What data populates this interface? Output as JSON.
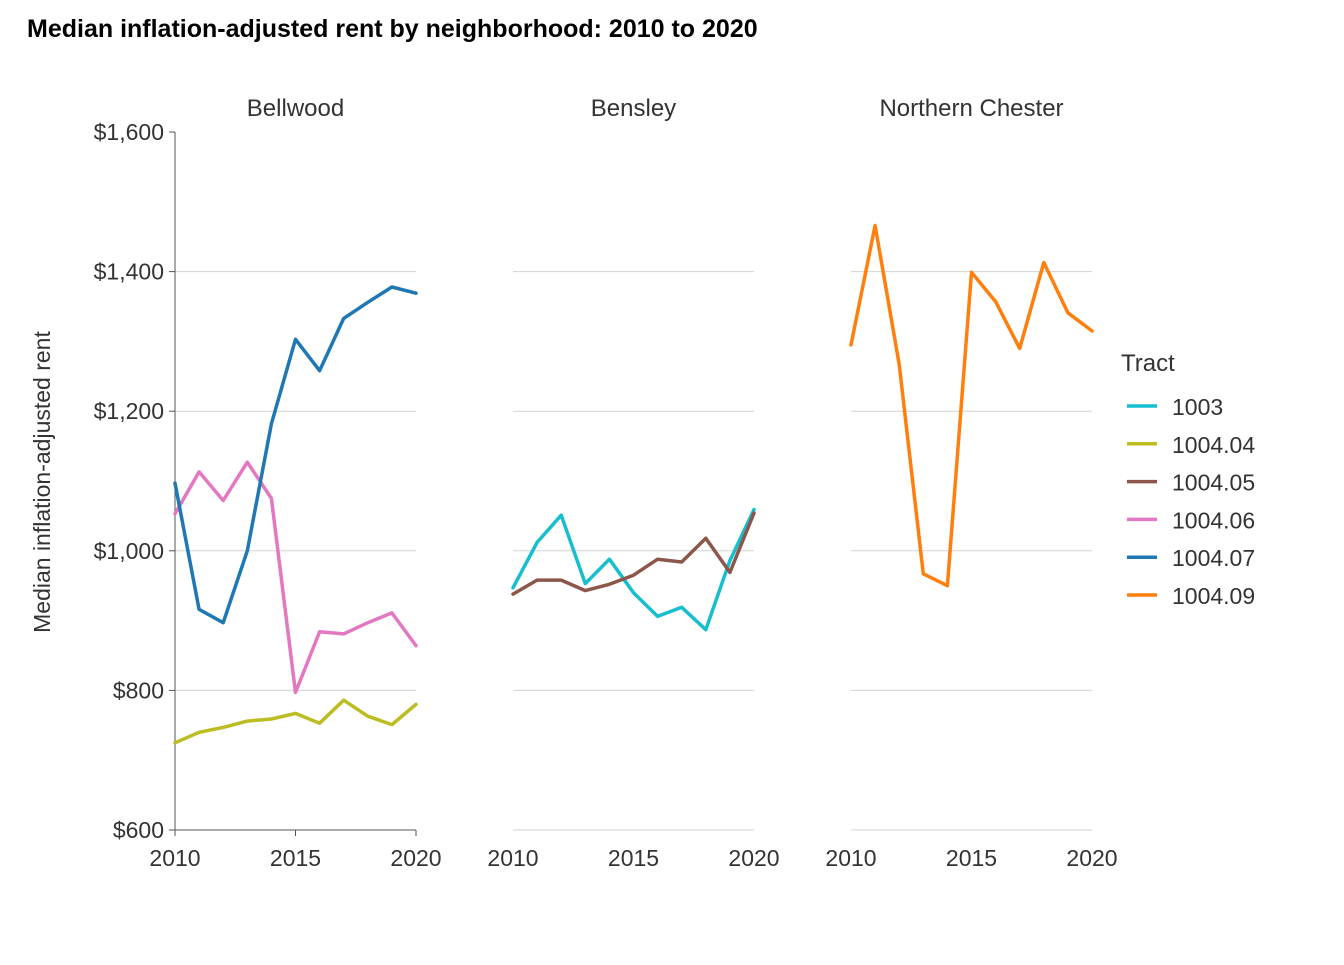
{
  "chart_data": {
    "type": "line",
    "title": "Median inflation-adjusted rent by neighborhood: 2010 to 2020",
    "ylabel": "Median inflation-adjusted rent",
    "xlabel": "",
    "xlim": [
      2010,
      2020
    ],
    "ylim": [
      600,
      1600
    ],
    "x_ticks": [
      2010,
      2015,
      2020
    ],
    "x_tick_labels": [
      "2010",
      "2015",
      "2020"
    ],
    "y_ticks": [
      600,
      800,
      1000,
      1200,
      1400,
      1600
    ],
    "y_tick_labels": [
      "$600",
      "$800",
      "$1,000",
      "$1,200",
      "$1,400",
      "$1,600"
    ],
    "grid": "horizontal major gridlines",
    "legend": {
      "title": "Tract",
      "position": "right",
      "entries": [
        {
          "name": "1003",
          "color": "#17becf"
        },
        {
          "name": "1004.04",
          "color": "#bcbd22"
        },
        {
          "name": "1004.05",
          "color": "#8c564b"
        },
        {
          "name": "1004.06",
          "color": "#e377c2"
        },
        {
          "name": "1004.07",
          "color": "#1f77b4"
        },
        {
          "name": "1004.09",
          "color": "#ff7f0e"
        }
      ]
    },
    "facets": [
      {
        "label": "Bellwood",
        "series": [
          {
            "name": "1004.04",
            "color": "#bcbd22",
            "x": [
              2010,
              2011,
              2012,
              2013,
              2014,
              2015,
              2016,
              2017,
              2018,
              2019,
              2020
            ],
            "y": [
              725,
              740,
              747,
              756,
              759,
              767,
              753,
              786,
              763,
              751,
              780
            ]
          },
          {
            "name": "1004.06",
            "color": "#e377c2",
            "x": [
              2010,
              2011,
              2012,
              2013,
              2014,
              2015,
              2016,
              2017,
              2018,
              2019,
              2020
            ],
            "y": [
              1053,
              1113,
              1072,
              1127,
              1075,
              797,
              884,
              881,
              897,
              911,
              864
            ]
          },
          {
            "name": "1004.07",
            "color": "#1f77b4",
            "x": [
              2010,
              2011,
              2012,
              2013,
              2014,
              2015,
              2016,
              2017,
              2018,
              2019,
              2020
            ],
            "y": [
              1097,
              916,
              897,
              1000,
              1182,
              1303,
              1258,
              1333,
              1356,
              1378,
              1369
            ]
          }
        ]
      },
      {
        "label": "Bensley",
        "series": [
          {
            "name": "1003",
            "color": "#17becf",
            "x": [
              2010,
              2011,
              2012,
              2013,
              2014,
              2015,
              2016,
              2017,
              2018,
              2019,
              2020
            ],
            "y": [
              947,
              1012,
              1051,
              953,
              988,
              940,
              906,
              919,
              887,
              986,
              1059
            ]
          },
          {
            "name": "1004.05",
            "color": "#8c564b",
            "x": [
              2010,
              2011,
              2012,
              2013,
              2014,
              2015,
              2016,
              2017,
              2018,
              2019,
              2020
            ],
            "y": [
              938,
              958,
              958,
              943,
              952,
              965,
              988,
              984,
              1018,
              969,
              1054
            ]
          }
        ]
      },
      {
        "label": "Northern Chester",
        "series": [
          {
            "name": "1004.09",
            "color": "#ff7f0e",
            "x": [
              2010,
              2011,
              2012,
              2013,
              2014,
              2015,
              2016,
              2017,
              2018,
              2019,
              2020
            ],
            "y": [
              1295,
              1466,
              1267,
              967,
              950,
              1399,
              1357,
              1290,
              1413,
              1341,
              1315
            ]
          }
        ]
      }
    ]
  }
}
